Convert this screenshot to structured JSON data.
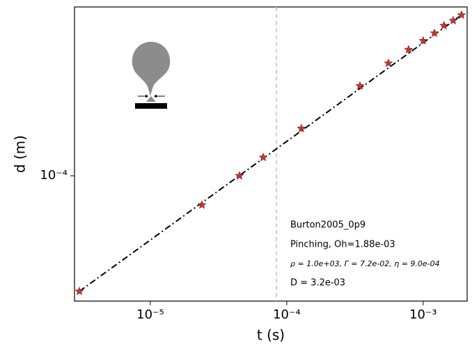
{
  "chart_data": {
    "type": "scatter",
    "xlabel": "t (s)",
    "ylabel": "d (m)",
    "log_x": true,
    "log_y": true,
    "xlim": [
      2.78e-06,
      0.0021
    ],
    "ylim": [
      2.31e-05,
      0.00072
    ],
    "xticks": [
      {
        "value": 1e-05,
        "label": "10⁻⁵"
      },
      {
        "value": 0.0001,
        "label": "10⁻⁴"
      },
      {
        "value": 0.001,
        "label": "10⁻³"
      }
    ],
    "yticks": [
      {
        "value": 0.0001,
        "label": "10⁻⁴"
      }
    ],
    "vline": 8.4e-05,
    "vline_color": "#cccccc",
    "series": [
      {
        "color": "#000000",
        "style": "dashdot",
        "x": [
          3.02e-06,
          0.00191
        ],
        "values": [
          2.59e-05,
          0.000655
        ]
      },
      {
        "color": "#c0393b",
        "marker": "star",
        "x": [
          3.02e-06,
          2.39e-05,
          4.5e-05,
          6.72e-05,
          0.000128,
          0.000344,
          0.000556,
          0.000782,
          0.001,
          0.00121,
          0.00142,
          0.00166,
          0.00191
        ],
        "values": [
          2.59e-05,
          7.11e-05,
          0.0001,
          0.000124,
          0.000174,
          0.000286,
          0.000373,
          0.000437,
          0.000485,
          0.00053,
          0.000579,
          0.000614,
          0.000655
        ]
      }
    ],
    "annotations": [
      "Burton2005_0p9",
      "Pinching, Oh=1.88e-03",
      "ρ = 1.0e+03, Γ = 7.2e-02, η = 9.0e-04",
      "D = 3.2e-03"
    ]
  }
}
